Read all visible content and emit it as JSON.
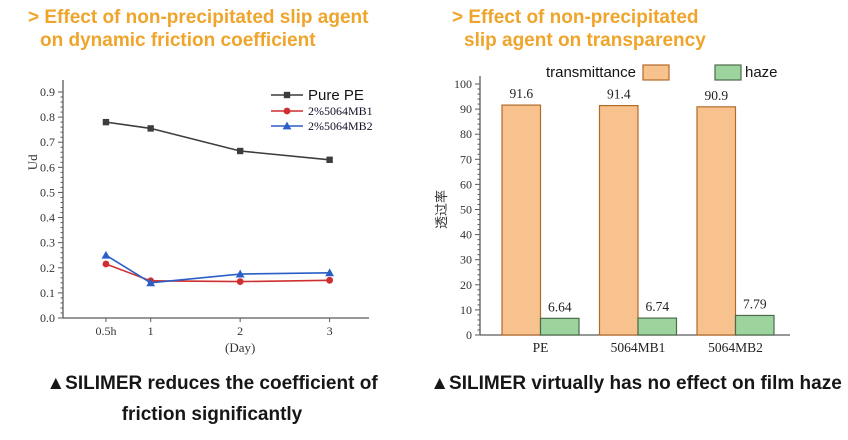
{
  "left_panel": {
    "title_lines": [
      "> Effect of non-precipitated slip agent",
      "on dynamic friction coefficient"
    ],
    "caption_lines": [
      "▲SILIMER reduces the coefficient of",
      "friction significantly"
    ]
  },
  "right_panel": {
    "title_lines": [
      "> Effect of non-precipitated",
      "slip agent on transparency"
    ],
    "caption_lines": [
      "▲SILIMER virtually has no effect on film haze"
    ]
  },
  "colors": {
    "title_accent": "#efa52b",
    "caption_text": "#161616",
    "axis": "#5a5a5a"
  },
  "chart_data": [
    {
      "type": "line",
      "title": "",
      "xlabel": "(Day)",
      "ylabel": "Ud",
      "x": [
        0.5,
        1,
        2,
        3
      ],
      "x_tick_labels": [
        "0.5h",
        "1",
        "2",
        "3"
      ],
      "xlim": [
        0.02,
        3.44
      ],
      "ylim": [
        0,
        0.9
      ],
      "y_tick_step": 0.1,
      "y_minor_step": 0.02,
      "grid": false,
      "legend_position": "top-right",
      "series": [
        {
          "name": "Pure PE",
          "marker": "square",
          "color": "#3d3d3d",
          "values": [
            0.78,
            0.755,
            0.665,
            0.63
          ]
        },
        {
          "name": "2%5064MB1",
          "marker": "circle",
          "color": "#cf2f2f",
          "values": [
            0.215,
            0.148,
            0.145,
            0.15
          ]
        },
        {
          "name": "2%5064MB2",
          "marker": "triangle",
          "color": "#2b5fc7",
          "values": [
            0.25,
            0.14,
            0.175,
            0.18
          ]
        }
      ]
    },
    {
      "type": "bar",
      "title": "",
      "xlabel": "",
      "ylabel": "透过率",
      "categories": [
        "PE",
        "5064MB1",
        "5064MB2"
      ],
      "ylim": [
        0,
        100
      ],
      "y_tick_step": 10,
      "y_minor_step": 2,
      "grid": false,
      "legend_position": "top",
      "series": [
        {
          "name": "transmittance",
          "color": "#f8c28e",
          "border": "#b26a28",
          "values": [
            91.6,
            91.4,
            90.9
          ],
          "value_labels": [
            "91.6",
            "91.4",
            "90.9"
          ]
        },
        {
          "name": "haze",
          "color": "#9dd49d",
          "border": "#4c6b4c",
          "values": [
            6.64,
            6.74,
            7.79
          ],
          "value_labels": [
            "6.64",
            "6.74",
            "7.79"
          ]
        }
      ]
    }
  ]
}
